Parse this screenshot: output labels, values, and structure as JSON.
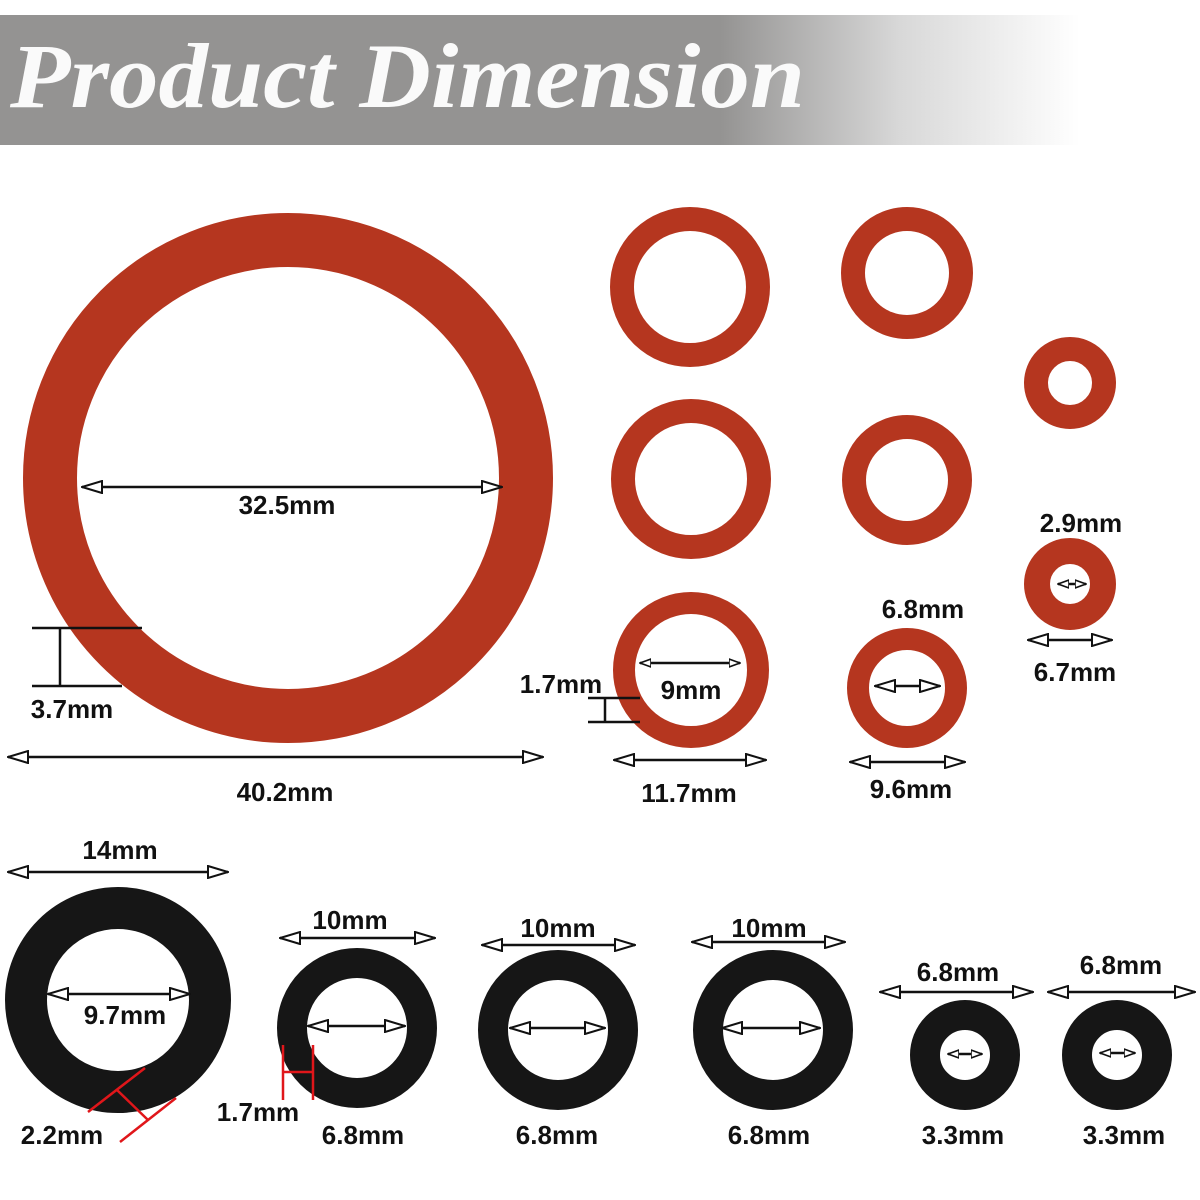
{
  "header": {
    "title": "Product Dimension"
  },
  "colors": {
    "red_ring": "#b5361f",
    "black_ring": "#161616",
    "banner": "#949392",
    "accent_marker": "#e0161a"
  },
  "red_rings": {
    "large": {
      "inner": "32.5mm",
      "section": "3.7mm",
      "outer": "40.2mm"
    },
    "medium": {
      "section": "1.7mm",
      "inner": "9mm",
      "outer": "11.7mm"
    },
    "small": {
      "inner": "6.8mm",
      "outer": "9.6mm"
    },
    "tiny": {
      "inner": "2.9mm",
      "outer": "6.7mm"
    }
  },
  "black_rings": [
    {
      "outer": "14mm",
      "inner": "9.7mm",
      "section": "2.2mm"
    },
    {
      "outer": "10mm",
      "inner": "6.8mm",
      "section": "1.7mm"
    },
    {
      "outer": "10mm",
      "inner": "6.8mm"
    },
    {
      "outer": "10mm",
      "inner": "6.8mm"
    },
    {
      "outer": "6.8mm",
      "inner": "3.3mm"
    },
    {
      "outer": "6.8mm",
      "inner": "3.3mm"
    }
  ]
}
